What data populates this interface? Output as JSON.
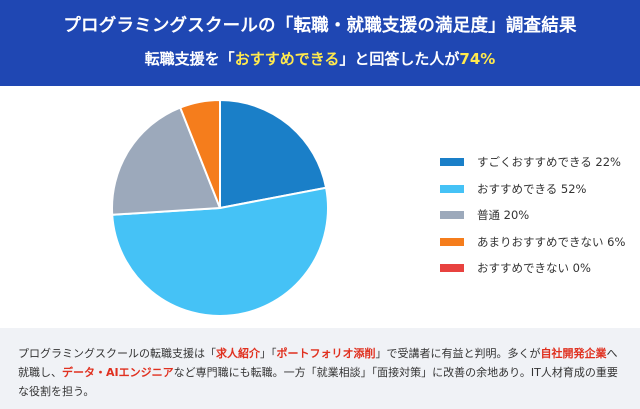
{
  "header": {
    "title": "プログラミングスクールの「転職・就職支援の満足度」調査結果",
    "subtitle_before": "転職支援を「",
    "subtitle_highlight": "おすすめできる",
    "subtitle_middle": "」と回答した人が",
    "subtitle_percent": "74%"
  },
  "chart_data": {
    "type": "pie",
    "unit": "%",
    "slices": [
      {
        "label": "すごくおすすめできる",
        "value": 22,
        "color": "#1a7fc8"
      },
      {
        "label": "おすすめできる",
        "value": 52,
        "color": "#45c2f6"
      },
      {
        "label": "普通",
        "value": 20,
        "color": "#9ca9bb"
      },
      {
        "label": "あまりおすすめできない",
        "value": 6,
        "color": "#f57d1c"
      },
      {
        "label": "おすすめできない",
        "value": 0,
        "color": "#e8423f"
      }
    ],
    "legend_position": "right"
  },
  "footer": {
    "t1": "プログラミングスクールの転職支援は「",
    "h1": "求人紹介",
    "t2": "」「",
    "h2": "ポートフォリオ添削",
    "t3": "」で受講者に有益と判明。多くが",
    "h3": "自社開発企業",
    "t4": "へ就職し、",
    "h4": "データ・AIエンジニア",
    "t5": "など専門職にも転職。一方「就業相談」「面接対策」に改善の余地あり。IT人材育成の重要な役割を担う。"
  }
}
